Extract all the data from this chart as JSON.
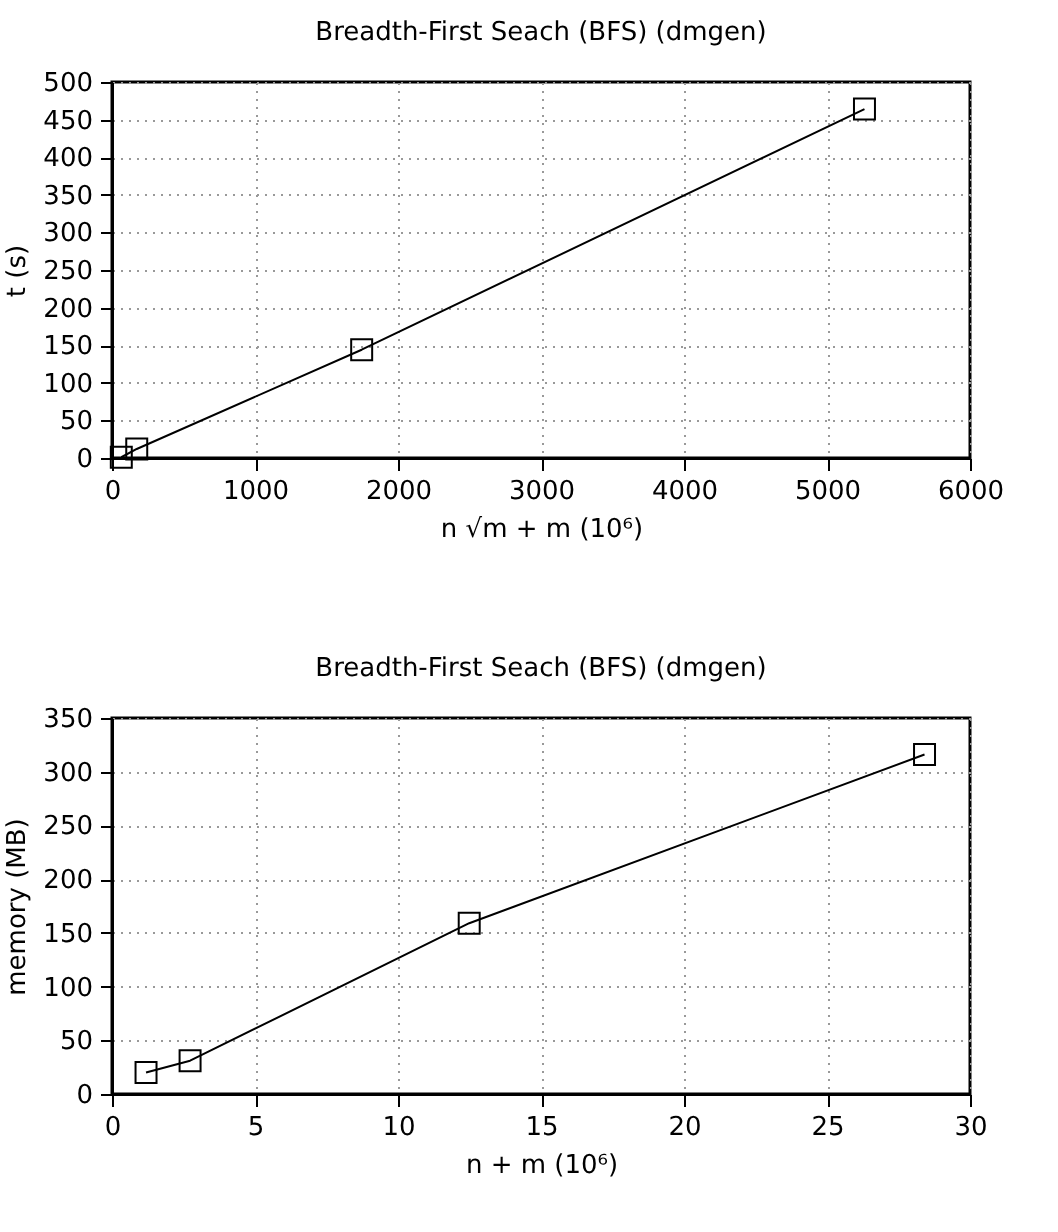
{
  "chart_data": [
    {
      "type": "line",
      "title": "Breadth-First Seach (BFS) (dmgen)",
      "xlabel": "n √m + m (10⁶)",
      "ylabel": "t (s)",
      "marker": "square",
      "grid": true,
      "series": [
        {
          "color": "#000000",
          "x": [
            65,
            173,
            1746,
            5262
          ],
          "values": [
            1,
            12,
            144,
            464
          ]
        }
      ],
      "xlim": [
        0,
        6000
      ],
      "xticks": [
        0,
        1000,
        2000,
        3000,
        4000,
        5000,
        6000
      ],
      "ylim": [
        0,
        500
      ],
      "yticks": [
        0,
        50,
        100,
        150,
        200,
        250,
        300,
        350,
        400,
        450,
        500
      ]
    },
    {
      "type": "line",
      "title": "Breadth-First Seach (BFS) (dmgen)",
      "xlabel": "n + m (10⁶)",
      "ylabel": "memory (MB)",
      "marker": "square",
      "grid": true,
      "series": [
        {
          "color": "#000000",
          "x": [
            1.19,
            2.73,
            12.49,
            28.41
          ],
          "values": [
            20,
            31,
            159,
            316
          ]
        }
      ],
      "xlim": [
        0,
        30
      ],
      "xticks": [
        0,
        5,
        10,
        15,
        20,
        25,
        30
      ],
      "ylim": [
        0,
        350
      ],
      "yticks": [
        0,
        50,
        100,
        150,
        200,
        250,
        300,
        350
      ]
    }
  ]
}
